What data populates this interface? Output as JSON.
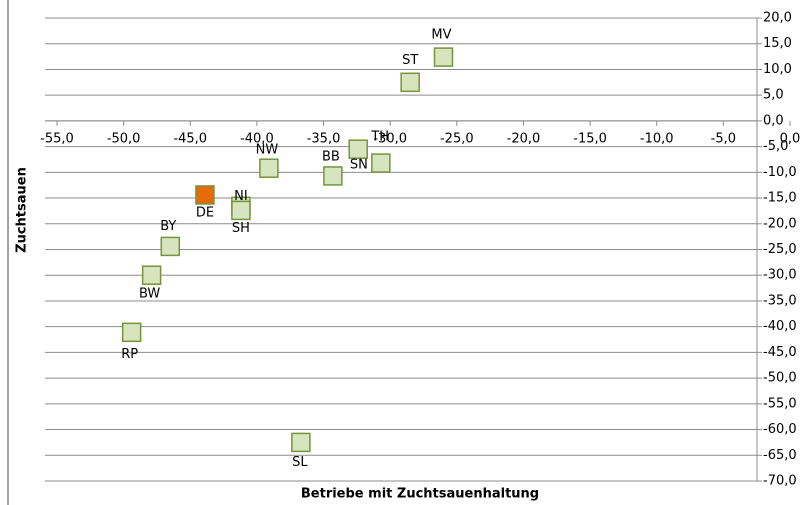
{
  "chart_data": {
    "type": "scatter",
    "x_label": "Betriebe mit Zuchtsauenhaltung",
    "y_label": "Zuchtsauen",
    "points": [
      {
        "label": "MV",
        "x": -26.0,
        "y": 12.4,
        "color": "#d7e4bd"
      },
      {
        "label": "ST",
        "x": -28.5,
        "y": 7.5,
        "color": "#d7e4bd"
      },
      {
        "label": "TH",
        "x": -32.4,
        "y": -5.5,
        "color": "#d7e4bd"
      },
      {
        "label": "SN",
        "x": -30.7,
        "y": -8.2,
        "color": "#d7e4bd"
      },
      {
        "label": "BB",
        "x": -34.3,
        "y": -10.7,
        "color": "#d7e4bd"
      },
      {
        "label": "NW",
        "x": -39.1,
        "y": -9.2,
        "color": "#d7e4bd"
      },
      {
        "label": "NI",
        "x": -41.2,
        "y": -16.6,
        "color": "#d7e4bd"
      },
      {
        "label": "SH",
        "x": -41.2,
        "y": -17.4,
        "color": "#d7e4bd"
      },
      {
        "label": "DE",
        "x": -43.9,
        "y": -14.4,
        "color": "#e46c0a"
      },
      {
        "label": "BY",
        "x": -46.5,
        "y": -24.4,
        "color": "#d7e4bd"
      },
      {
        "label": "BW",
        "x": -47.9,
        "y": -30.0,
        "color": "#d7e4bd"
      },
      {
        "label": "RP",
        "x": -49.4,
        "y": -41.1,
        "color": "#d7e4bd"
      },
      {
        "label": "SL",
        "x": -36.7,
        "y": -62.5,
        "color": "#d7e4bd"
      }
    ],
    "marker_stroke": "#77933c",
    "xlim": [
      -55,
      0
    ],
    "xticks": [
      {
        "value": -55,
        "label": "-55,0"
      },
      {
        "value": -50,
        "label": "-50,0"
      },
      {
        "value": -45,
        "label": "-45,0"
      },
      {
        "value": -40,
        "label": "-40,0"
      },
      {
        "value": -35,
        "label": "-35,0"
      },
      {
        "value": -30,
        "label": "-30,0"
      },
      {
        "value": -25,
        "label": "-25,0"
      },
      {
        "value": -20,
        "label": "-20,0"
      },
      {
        "value": -15,
        "label": "-15,0"
      },
      {
        "value": -10,
        "label": "-10,0"
      },
      {
        "value": -5,
        "label": "-5,0"
      },
      {
        "value": 0,
        "label": "0,0"
      }
    ],
    "ylim": [
      -70,
      20
    ],
    "yticks": [
      {
        "value": 20,
        "label": "20,0"
      },
      {
        "value": 15,
        "label": "15,0"
      },
      {
        "value": 10,
        "label": "10,0"
      },
      {
        "value": 5,
        "label": "5,0"
      },
      {
        "value": 0,
        "label": "0,0"
      },
      {
        "value": -5,
        "label": "-5,0"
      },
      {
        "value": -10,
        "label": "-10,0"
      },
      {
        "value": -15,
        "label": "-15,0"
      },
      {
        "value": -20,
        "label": "-20,0"
      },
      {
        "value": -25,
        "label": "-25,0"
      },
      {
        "value": -30,
        "label": "-30,0"
      },
      {
        "value": -35,
        "label": "-35,0"
      },
      {
        "value": -40,
        "label": "-40,0"
      },
      {
        "value": -45,
        "label": "-45,0"
      },
      {
        "value": -50,
        "label": "-50,0"
      },
      {
        "value": -55,
        "label": "-55,0"
      },
      {
        "value": -60,
        "label": "-60,0"
      },
      {
        "value": -65,
        "label": "-65,0"
      },
      {
        "value": -70,
        "label": "-70,0"
      }
    ],
    "grid": true
  }
}
